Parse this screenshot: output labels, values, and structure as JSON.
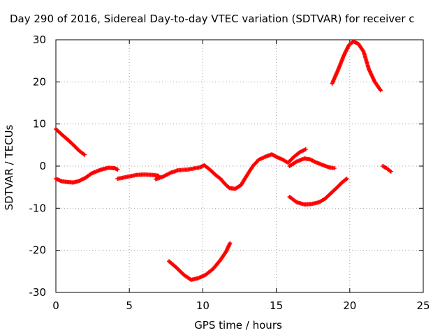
{
  "chart_data": {
    "type": "scatter",
    "title": "Day 290 of 2016, Sidereal Day-to-day VTEC variation (SDTVAR) for receiver c",
    "xlabel": "GPS time / hours",
    "ylabel": "SDTVAR / TECUs",
    "xlim": [
      0,
      25
    ],
    "ylim": [
      -30,
      30
    ],
    "xticks": [
      0,
      5,
      10,
      15,
      20,
      25
    ],
    "yticks": [
      -30,
      -20,
      -10,
      0,
      10,
      20,
      30
    ],
    "grid": true,
    "marker": "+",
    "series_color": "#ff0000",
    "segments": [
      {
        "x": [
          0.0,
          0.4,
          0.8,
          1.2,
          1.6,
          1.95
        ],
        "y": [
          8.8,
          7.5,
          6.3,
          5.0,
          3.6,
          2.7
        ]
      },
      {
        "x": [
          0.0,
          0.4,
          0.8,
          1.2,
          1.6,
          2.0,
          2.4,
          2.8,
          3.2,
          3.6,
          4.0,
          4.2
        ],
        "y": [
          -3.0,
          -3.6,
          -3.8,
          -3.9,
          -3.5,
          -2.8,
          -1.8,
          -1.2,
          -0.7,
          -0.4,
          -0.5,
          -0.8
        ]
      },
      {
        "x": [
          4.2,
          4.8,
          5.5,
          6.0,
          6.6,
          7.0
        ],
        "y": [
          -3.0,
          -2.6,
          -2.1,
          -2.0,
          -2.1,
          -2.3
        ]
      },
      {
        "x": [
          6.8,
          7.3,
          7.8,
          8.3,
          9.0,
          9.8,
          10.1,
          10.5,
          10.9,
          11.2,
          11.5,
          11.8,
          12.2,
          12.6,
          13.0,
          13.4,
          13.8,
          14.3,
          14.7,
          15.0,
          15.4,
          15.8,
          16.2,
          16.6,
          17.0
        ],
        "y": [
          -3.1,
          -2.5,
          -1.6,
          -1.0,
          -0.8,
          -0.3,
          0.2,
          -0.9,
          -2.2,
          -3.0,
          -4.2,
          -5.2,
          -5.4,
          -4.5,
          -2.2,
          0.0,
          1.5,
          2.3,
          2.8,
          2.2,
          1.6,
          0.8,
          2.2,
          3.3,
          4.0
        ]
      },
      {
        "x": [
          15.9,
          16.4,
          16.9,
          17.3,
          17.7,
          18.2,
          18.6,
          18.95
        ],
        "y": [
          0.0,
          1.1,
          1.8,
          1.6,
          0.9,
          0.2,
          -0.3,
          -0.5
        ]
      },
      {
        "x": [
          15.9,
          16.4,
          16.9,
          17.4,
          17.9,
          18.3,
          18.7,
          19.1,
          19.5,
          19.8
        ],
        "y": [
          -7.3,
          -8.6,
          -9.1,
          -9.0,
          -8.6,
          -7.8,
          -6.5,
          -5.2,
          -3.8,
          -3.0
        ]
      },
      {
        "x": [
          7.7,
          8.2,
          8.7,
          9.2,
          9.7,
          10.2,
          10.7,
          11.2,
          11.6,
          11.85
        ],
        "y": [
          -22.6,
          -24.1,
          -25.8,
          -27.0,
          -26.6,
          -25.8,
          -24.4,
          -22.3,
          -20.2,
          -18.3
        ]
      },
      {
        "x": [
          18.8,
          19.2,
          19.6,
          19.95,
          20.25,
          20.6,
          20.95,
          21.3,
          21.7,
          22.1
        ],
        "y": [
          19.6,
          22.8,
          26.3,
          28.8,
          29.6,
          29.0,
          27.1,
          23.0,
          20.0,
          18.0
        ]
      },
      {
        "x": [
          22.25,
          22.5,
          22.8
        ],
        "y": [
          0.0,
          -0.5,
          -1.3
        ]
      }
    ]
  }
}
